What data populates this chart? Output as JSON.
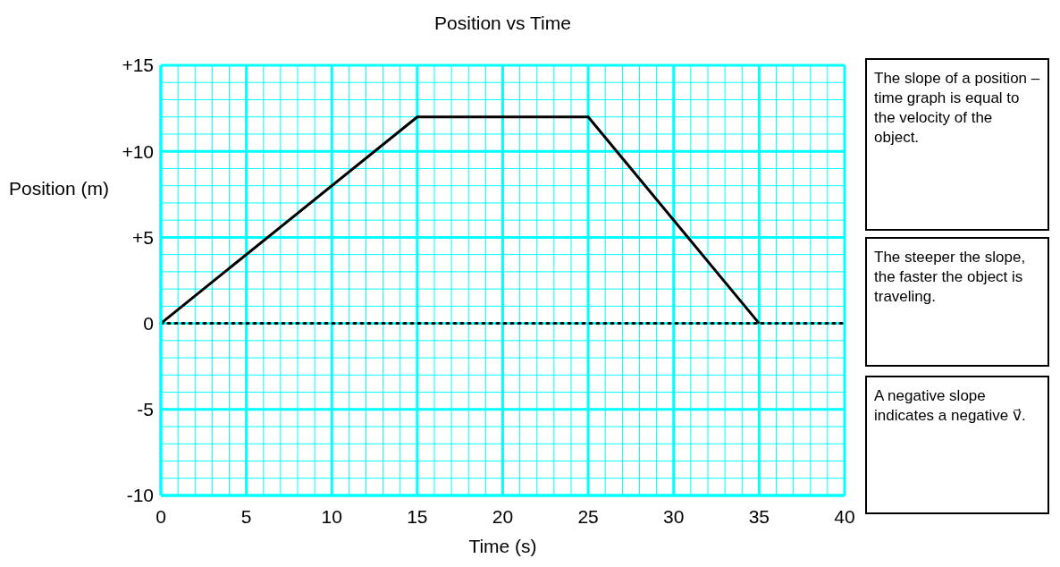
{
  "chart_data": {
    "type": "line",
    "title": "Position vs Time",
    "xlabel": "Time (s)",
    "ylabel": "Position (m)",
    "x": [
      0,
      15,
      25,
      35
    ],
    "series": [
      {
        "color": "#000000",
        "values": [
          0,
          12,
          12,
          0
        ]
      }
    ],
    "marker": "none",
    "line_style": "solid",
    "grid": true,
    "xlim": [
      0,
      40
    ],
    "ylim": [
      -10,
      15
    ],
    "xticks": [
      0,
      {
        "value": 1,
        "label": null
      },
      {
        "value": 2,
        "label": null
      },
      {
        "value": 3,
        "label": null
      },
      {
        "value": 4,
        "label": null
      },
      5,
      {
        "value": 6,
        "label": null
      },
      {
        "value": 7,
        "label": null
      },
      {
        "value": 8,
        "label": null
      },
      {
        "value": 9,
        "label": null
      },
      10,
      {
        "value": 11,
        "label": null
      },
      {
        "value": 12,
        "label": null
      },
      {
        "value": 13,
        "label": null
      },
      {
        "value": 14,
        "label": null
      },
      15,
      {
        "value": 16,
        "label": null
      },
      {
        "value": 17,
        "label": null
      },
      {
        "value": 18,
        "label": null
      },
      {
        "value": 19,
        "label": null
      },
      20,
      {
        "value": 21,
        "label": null
      },
      {
        "value": 22,
        "label": null
      },
      {
        "value": 23,
        "label": null
      },
      {
        "value": 24,
        "label": null
      },
      25,
      {
        "value": 26,
        "label": null
      },
      {
        "value": 27,
        "label": null
      },
      {
        "value": 28,
        "label": null
      },
      {
        "value": 29,
        "label": null
      },
      30,
      {
        "value": 31,
        "label": null
      },
      {
        "value": 32,
        "label": null
      },
      {
        "value": 33,
        "label": null
      },
      {
        "value": 34,
        "label": null
      },
      35,
      {
        "value": 36,
        "label": null
      },
      {
        "value": 37,
        "label": null
      },
      {
        "value": 38,
        "label": null
      },
      {
        "value": 39,
        "label": null
      },
      40
    ],
    "yticks": [
      {
        "value": -10,
        "label": "-10"
      },
      {
        "value": -9,
        "label": null
      },
      {
        "value": -8,
        "label": null
      },
      {
        "value": -7,
        "label": null
      },
      {
        "value": -6,
        "label": null
      },
      {
        "value": -5,
        "label": "-5"
      },
      {
        "value": -4,
        "label": null
      },
      {
        "value": -3,
        "label": null
      },
      {
        "value": -2,
        "label": null
      },
      {
        "value": -1,
        "label": null
      },
      {
        "value": 0,
        "label": "0"
      },
      {
        "value": 1,
        "label": null
      },
      {
        "value": 2,
        "label": null
      },
      {
        "value": 3,
        "label": null
      },
      {
        "value": 4,
        "label": null
      },
      {
        "value": 5,
        "label": "+5"
      },
      {
        "value": 6,
        "label": null
      },
      {
        "value": 7,
        "label": null
      },
      {
        "value": 8,
        "label": null
      },
      {
        "value": 9,
        "label": null
      },
      {
        "value": 10,
        "label": "+10"
      },
      {
        "value": 11,
        "label": null
      },
      {
        "value": 12,
        "label": null
      },
      {
        "value": 13,
        "label": null
      },
      {
        "value": 14,
        "label": null
      },
      {
        "value": 15,
        "label": "+15"
      }
    ],
    "ref_lines": [
      {
        "axis": "y",
        "value": 0,
        "color": "#000000",
        "line_style": "dotted"
      }
    ],
    "annotations": [
      "The slope of a position – time graph is equal to the velocity of the object.",
      "The steeper the slope, the faster the object is traveling.",
      "A negative slope indicates a negative v⃗."
    ]
  }
}
